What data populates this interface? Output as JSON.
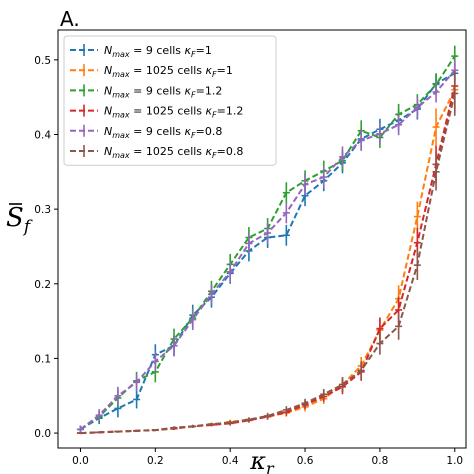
{
  "panel_label": "A.",
  "chart_data": {
    "type": "line",
    "xlabel": "κr",
    "ylabel": "S̄f",
    "xlim": [
      -0.06,
      1.03
    ],
    "ylim": [
      -0.02,
      0.54
    ],
    "xticks": [
      0.0,
      0.2,
      0.4,
      0.6,
      0.8,
      1.0
    ],
    "yticks": [
      0.0,
      0.1,
      0.2,
      0.3,
      0.4,
      0.5
    ],
    "xtick_labels": [
      "0.0",
      "0.2",
      "0.4",
      "0.6",
      "0.8",
      "1.0"
    ],
    "ytick_labels": [
      "0.0",
      "0.1",
      "0.2",
      "0.3",
      "0.4",
      "0.5"
    ],
    "legend_position": "top-left",
    "grid": false,
    "x": [
      0.0,
      0.05,
      0.1,
      0.15,
      0.2,
      0.25,
      0.3,
      0.35,
      0.4,
      0.45,
      0.5,
      0.55,
      0.6,
      0.65,
      0.7,
      0.75,
      0.8,
      0.85,
      0.9,
      0.95,
      1.0
    ],
    "series": [
      {
        "name": "N_max = 9 cells κ_F=1",
        "color": "#1f77b4",
        "values": [
          0.005,
          0.02,
          0.033,
          0.045,
          0.105,
          0.117,
          0.158,
          0.182,
          0.214,
          0.244,
          0.262,
          0.265,
          0.318,
          0.338,
          0.362,
          0.394,
          0.407,
          0.419,
          0.434,
          0.468,
          0.482
        ],
        "errors": [
          0.005,
          0.008,
          0.012,
          0.012,
          0.014,
          0.014,
          0.014,
          0.014,
          0.014,
          0.014,
          0.014,
          0.014,
          0.014,
          0.014,
          0.014,
          0.014,
          0.014,
          0.014,
          0.014,
          0.014,
          0.014
        ]
      },
      {
        "name": "N_max = 1025 cells κ_F=1",
        "color": "#ff7f0e",
        "values": [
          0.0,
          0.001,
          0.002,
          0.003,
          0.004,
          0.007,
          0.009,
          0.011,
          0.015,
          0.018,
          0.022,
          0.027,
          0.035,
          0.046,
          0.065,
          0.09,
          0.138,
          0.18,
          0.29,
          0.41,
          0.46
        ],
        "errors": [
          0.001,
          0.001,
          0.001,
          0.001,
          0.001,
          0.002,
          0.002,
          0.002,
          0.003,
          0.003,
          0.004,
          0.005,
          0.006,
          0.007,
          0.01,
          0.012,
          0.015,
          0.018,
          0.02,
          0.025,
          0.03
        ]
      },
      {
        "name": "N_max = 9 cells κ_F=1.2",
        "color": "#2ca02c",
        "values": [
          0.005,
          0.022,
          0.047,
          0.07,
          0.082,
          0.126,
          0.154,
          0.19,
          0.226,
          0.262,
          0.274,
          0.322,
          0.338,
          0.351,
          0.365,
          0.405,
          0.396,
          0.427,
          0.44,
          0.467,
          0.505
        ],
        "errors": [
          0.005,
          0.008,
          0.012,
          0.012,
          0.014,
          0.014,
          0.014,
          0.014,
          0.014,
          0.014,
          0.014,
          0.014,
          0.014,
          0.014,
          0.014,
          0.014,
          0.014,
          0.014,
          0.014,
          0.014,
          0.014
        ]
      },
      {
        "name": "N_max = 1025 cells κ_F=1.2",
        "color": "#d62728",
        "values": [
          0.0,
          0.001,
          0.002,
          0.003,
          0.004,
          0.006,
          0.009,
          0.011,
          0.013,
          0.017,
          0.022,
          0.028,
          0.038,
          0.049,
          0.062,
          0.082,
          0.14,
          0.165,
          0.255,
          0.36,
          0.465
        ],
        "errors": [
          0.001,
          0.001,
          0.001,
          0.001,
          0.001,
          0.002,
          0.002,
          0.002,
          0.003,
          0.003,
          0.004,
          0.005,
          0.006,
          0.007,
          0.01,
          0.012,
          0.015,
          0.018,
          0.02,
          0.025,
          0.03
        ]
      },
      {
        "name": "N_max = 9 cells κ_F=0.8",
        "color": "#9467bd",
        "values": [
          0.005,
          0.024,
          0.05,
          0.068,
          0.096,
          0.117,
          0.152,
          0.186,
          0.216,
          0.254,
          0.268,
          0.295,
          0.333,
          0.343,
          0.37,
          0.392,
          0.401,
          0.413,
          0.436,
          0.457,
          0.486
        ],
        "errors": [
          0.005,
          0.008,
          0.012,
          0.012,
          0.014,
          0.014,
          0.014,
          0.014,
          0.014,
          0.014,
          0.014,
          0.014,
          0.014,
          0.014,
          0.014,
          0.014,
          0.014,
          0.014,
          0.014,
          0.014,
          0.014
        ]
      },
      {
        "name": "N_max = 1025 cells κ_F=0.8",
        "color": "#8c564b",
        "values": [
          0.0,
          0.001,
          0.002,
          0.003,
          0.004,
          0.007,
          0.009,
          0.012,
          0.014,
          0.018,
          0.023,
          0.031,
          0.04,
          0.052,
          0.065,
          0.084,
          0.12,
          0.143,
          0.225,
          0.35,
          0.455
        ],
        "errors": [
          0.001,
          0.001,
          0.001,
          0.001,
          0.001,
          0.002,
          0.002,
          0.002,
          0.003,
          0.003,
          0.004,
          0.005,
          0.006,
          0.007,
          0.01,
          0.012,
          0.015,
          0.018,
          0.02,
          0.025,
          0.03
        ]
      }
    ]
  }
}
